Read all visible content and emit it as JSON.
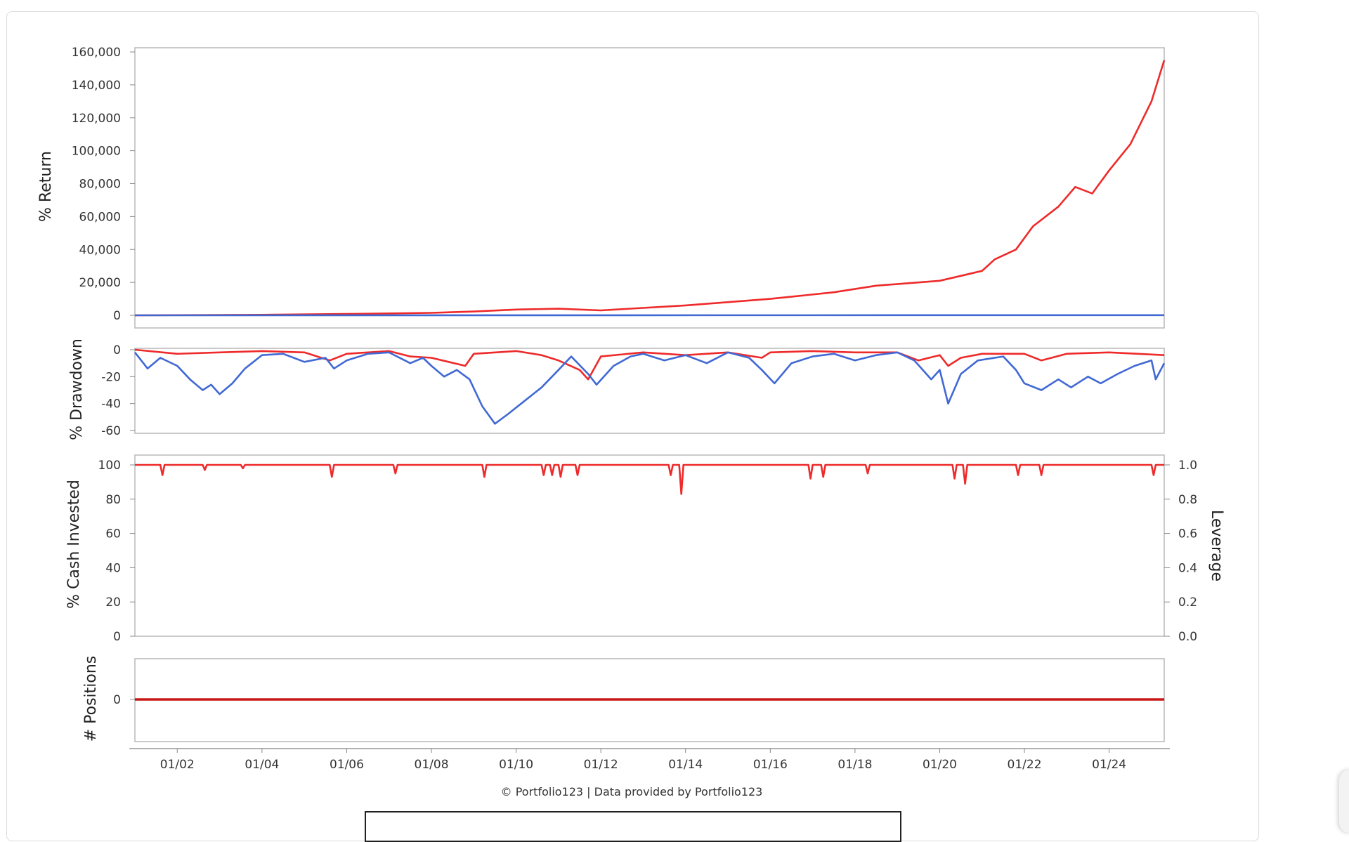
{
  "credit": "© Portfolio123 | Data provided by Portfolio123",
  "colors": {
    "strategy": "#ee2a2a",
    "benchmark": "#4169d4",
    "positions": "#c81818"
  },
  "chart_data": [
    {
      "type": "line",
      "panel": "return",
      "ylabel": "% Return",
      "ylim": [
        0,
        160000
      ],
      "yticks": [
        "160,000",
        "140,000",
        "120,000",
        "100,000",
        "80,000",
        "60,000",
        "40,000",
        "20,000",
        "0"
      ],
      "xticks": [
        "01/02",
        "01/04",
        "01/06",
        "01/08",
        "01/10",
        "01/12",
        "01/14",
        "01/16",
        "01/18",
        "01/20",
        "01/22",
        "01/24"
      ],
      "xlim": [
        2001.0,
        2025.3
      ],
      "grid": true,
      "series": [
        {
          "color": "#ee2a2a",
          "x": [
            2001.0,
            2004,
            2006,
            2008,
            2009,
            2010,
            2011,
            2012,
            2014,
            2016,
            2017.5,
            2018.5,
            2020,
            2020.5,
            2021.0,
            2021.3,
            2021.8,
            2022.2,
            2022.8,
            2023.2,
            2023.6,
            2024.0,
            2024.5,
            2025.0,
            2025.3
          ],
          "y": [
            0,
            300,
            800,
            1500,
            2300,
            3500,
            4000,
            3000,
            6000,
            10000,
            14000,
            18000,
            21000,
            24000,
            27000,
            34000,
            40000,
            54000,
            66000,
            78000,
            74000,
            88000,
            104000,
            130000,
            155000
          ]
        },
        {
          "color": "#4169d4",
          "x": [
            2001.0,
            2025.3
          ],
          "y": [
            0,
            80
          ]
        }
      ]
    },
    {
      "type": "line",
      "panel": "drawdown",
      "ylabel": "% Drawdown",
      "ylim": [
        -60,
        0
      ],
      "yticks": [
        "0",
        "-20",
        "-40",
        "-60"
      ],
      "grid": true,
      "series": [
        {
          "color": "#ee2a2a",
          "x": [
            2001.0,
            2002,
            2003,
            2004,
            2005,
            2005.6,
            2006,
            2007,
            2007.5,
            2008,
            2008.8,
            2009,
            2010,
            2010.6,
            2011,
            2011.5,
            2011.7,
            2012,
            2013,
            2014,
            2015,
            2015.8,
            2016,
            2017,
            2018,
            2019,
            2019.5,
            2020,
            2020.2,
            2020.5,
            2021,
            2022,
            2022.4,
            2023,
            2024,
            2025.3
          ],
          "y": [
            0,
            -3,
            -2,
            -1,
            -2,
            -8,
            -3,
            -1,
            -5,
            -6,
            -12,
            -3,
            -1,
            -4,
            -8,
            -15,
            -22,
            -5,
            -2,
            -4,
            -2,
            -6,
            -2,
            -1,
            -2,
            -2,
            -8,
            -4,
            -12,
            -6,
            -3,
            -3,
            -8,
            -3,
            -2,
            -4
          ]
        },
        {
          "color": "#4169d4",
          "x": [
            2001.0,
            2001.3,
            2001.6,
            2002,
            2002.3,
            2002.6,
            2002.8,
            2003,
            2003.3,
            2003.6,
            2004,
            2004.5,
            2005,
            2005.5,
            2005.7,
            2006,
            2006.5,
            2007,
            2007.5,
            2007.8,
            2008,
            2008.3,
            2008.6,
            2008.9,
            2009.2,
            2009.5,
            2009.8,
            2010.2,
            2010.6,
            2011,
            2011.3,
            2011.7,
            2011.9,
            2012.3,
            2012.7,
            2013,
            2013.5,
            2014,
            2014.5,
            2015,
            2015.5,
            2015.8,
            2016.1,
            2016.5,
            2017,
            2017.5,
            2018,
            2018.5,
            2019,
            2019.4,
            2019.8,
            2020,
            2020.2,
            2020.5,
            2020.9,
            2021.5,
            2021.8,
            2022,
            2022.4,
            2022.8,
            2023.1,
            2023.5,
            2023.8,
            2024.2,
            2024.6,
            2025.0,
            2025.1,
            2025.3
          ],
          "y": [
            -2,
            -14,
            -6,
            -12,
            -22,
            -30,
            -26,
            -33,
            -25,
            -14,
            -4,
            -3,
            -9,
            -6,
            -14,
            -8,
            -3,
            -2,
            -10,
            -6,
            -12,
            -20,
            -15,
            -22,
            -42,
            -55,
            -48,
            -38,
            -28,
            -15,
            -5,
            -18,
            -26,
            -12,
            -5,
            -3,
            -8,
            -4,
            -10,
            -2,
            -6,
            -15,
            -25,
            -10,
            -5,
            -3,
            -8,
            -4,
            -2,
            -8,
            -22,
            -15,
            -40,
            -18,
            -8,
            -5,
            -15,
            -25,
            -30,
            -22,
            -28,
            -20,
            -25,
            -18,
            -12,
            -8,
            -22,
            -10
          ]
        }
      ]
    },
    {
      "type": "line",
      "panel": "invested",
      "ylabel": "% Cash Invested",
      "y2label": "Leverage",
      "ylim": [
        0,
        100
      ],
      "yticks": [
        "100",
        "80",
        "60",
        "40",
        "20",
        "0"
      ],
      "y2ticks": [
        "1.0",
        "0.8",
        "0.6",
        "0.4",
        "0.2",
        "0.0"
      ],
      "grid": true,
      "series": [
        {
          "color": "#ee2a2a",
          "x": [
            2001.0,
            2001.6,
            2001.65,
            2001.7,
            2002.6,
            2002.65,
            2002.7,
            2003.5,
            2003.55,
            2003.6,
            2005.6,
            2005.65,
            2005.7,
            2007.1,
            2007.15,
            2007.2,
            2009.2,
            2009.25,
            2009.3,
            2010.6,
            2010.65,
            2010.7,
            2010.8,
            2010.85,
            2010.9,
            2011.0,
            2011.05,
            2011.1,
            2011.4,
            2011.45,
            2011.5,
            2013.6,
            2013.65,
            2013.7,
            2013.85,
            2013.9,
            2013.95,
            2016.9,
            2016.95,
            2017.0,
            2017.2,
            2017.25,
            2017.3,
            2018.25,
            2018.3,
            2018.35,
            2020.3,
            2020.35,
            2020.4,
            2020.55,
            2020.6,
            2020.65,
            2021.8,
            2021.85,
            2021.9,
            2022.35,
            2022.4,
            2022.45,
            2025.0,
            2025.05,
            2025.1,
            2025.3
          ],
          "y": [
            100,
            100,
            94,
            100,
            100,
            97,
            100,
            100,
            98,
            100,
            100,
            93,
            100,
            100,
            95,
            100,
            100,
            93,
            100,
            100,
            94,
            100,
            100,
            94,
            100,
            100,
            93,
            100,
            100,
            94,
            100,
            100,
            94,
            100,
            100,
            83,
            100,
            100,
            92,
            100,
            100,
            93,
            100,
            100,
            95,
            100,
            100,
            92,
            100,
            100,
            89,
            100,
            100,
            94,
            100,
            100,
            94,
            100,
            100,
            94,
            100,
            100
          ]
        }
      ]
    },
    {
      "type": "line",
      "panel": "positions",
      "ylabel": "# Positions",
      "yticks": [
        "0"
      ],
      "grid": true,
      "series": [
        {
          "color": "#c81818",
          "x": [
            2001.0,
            2025.3
          ],
          "y": [
            0,
            0
          ]
        }
      ]
    }
  ]
}
